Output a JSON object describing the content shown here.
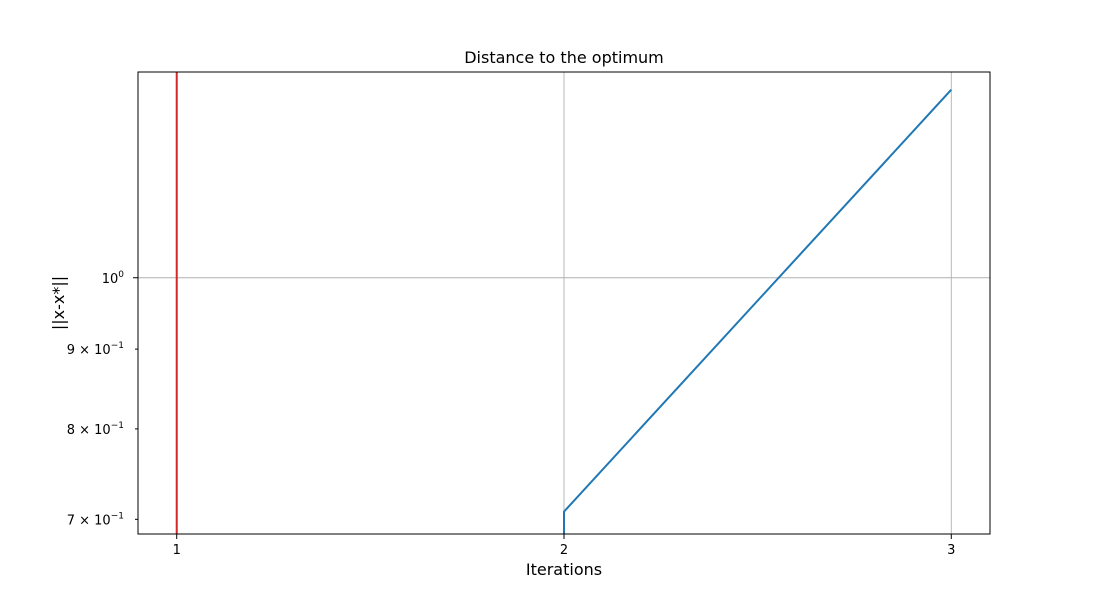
{
  "chart_data": {
    "type": "line",
    "title": "Distance to the optimum",
    "xlabel": "Iterations",
    "ylabel": "||x-x*||",
    "yscale": "log",
    "grid": true,
    "xlim": [
      0.9,
      3.1
    ],
    "ylim": [
      0.685,
      1.355
    ],
    "x_ticks": [
      {
        "value": 1,
        "label": "1"
      },
      {
        "value": 2,
        "label": "2"
      },
      {
        "value": 3,
        "label": "3"
      }
    ],
    "y_ticks": [
      {
        "value": 1.0,
        "base": "10",
        "exp": "0",
        "prefix": ""
      },
      {
        "value": 0.9,
        "base": "10",
        "exp": "−1",
        "prefix": "9 × "
      },
      {
        "value": 0.8,
        "base": "10",
        "exp": "−1",
        "prefix": "8 × "
      },
      {
        "value": 0.7,
        "base": "10",
        "exp": "−1",
        "prefix": "7 × "
      }
    ],
    "series": [
      {
        "color": "#1f77b4",
        "x": [
          2,
          2,
          3
        ],
        "y": [
          0.685,
          0.708,
          1.32
        ]
      }
    ],
    "vlines": [
      {
        "x": 1,
        "color": "#d62728"
      }
    ]
  }
}
